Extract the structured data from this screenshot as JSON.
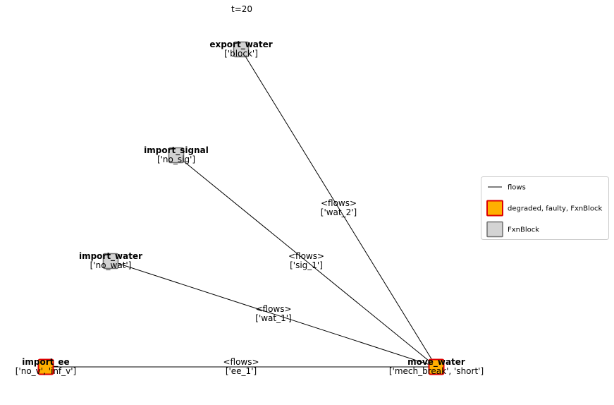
{
  "title": "t=20",
  "colors": {
    "faulty_fill": "#ffb000",
    "faulty_stroke": "#dd0000",
    "normal_fill": "#d3d3d3",
    "normal_stroke": "#6e6e6e",
    "edge": "#000000"
  },
  "nodes": [
    {
      "id": "export_water",
      "name": "export_water",
      "faults": "['block']",
      "state": "normal"
    },
    {
      "id": "import_signal",
      "name": "import_signal",
      "faults": "['no_sig']",
      "state": "normal"
    },
    {
      "id": "import_water",
      "name": "import_water",
      "faults": "['no_wat']",
      "state": "normal"
    },
    {
      "id": "import_ee",
      "name": "import_ee",
      "faults": "['no_v', 'inf_v']",
      "state": "faulty"
    },
    {
      "id": "move_water",
      "name": "move_water",
      "faults": "['mech_break', 'short']",
      "state": "faulty"
    }
  ],
  "edges": [
    {
      "from": "export_water",
      "to": "move_water",
      "type": "<flows>",
      "flows": "['wat_2']"
    },
    {
      "from": "import_signal",
      "to": "move_water",
      "type": "<flows>",
      "flows": "['sig_1']"
    },
    {
      "from": "import_water",
      "to": "move_water",
      "type": "<flows>",
      "flows": "['wat_1']"
    },
    {
      "from": "import_ee",
      "to": "move_water",
      "type": "<flows>",
      "flows": "['ee_1']"
    }
  ],
  "legend": {
    "items": [
      {
        "kind": "line",
        "label": "flows"
      },
      {
        "kind": "faulty",
        "label": "degraded, faulty, FxnBlock"
      },
      {
        "kind": "normal",
        "label": "FxnBlock"
      }
    ]
  }
}
